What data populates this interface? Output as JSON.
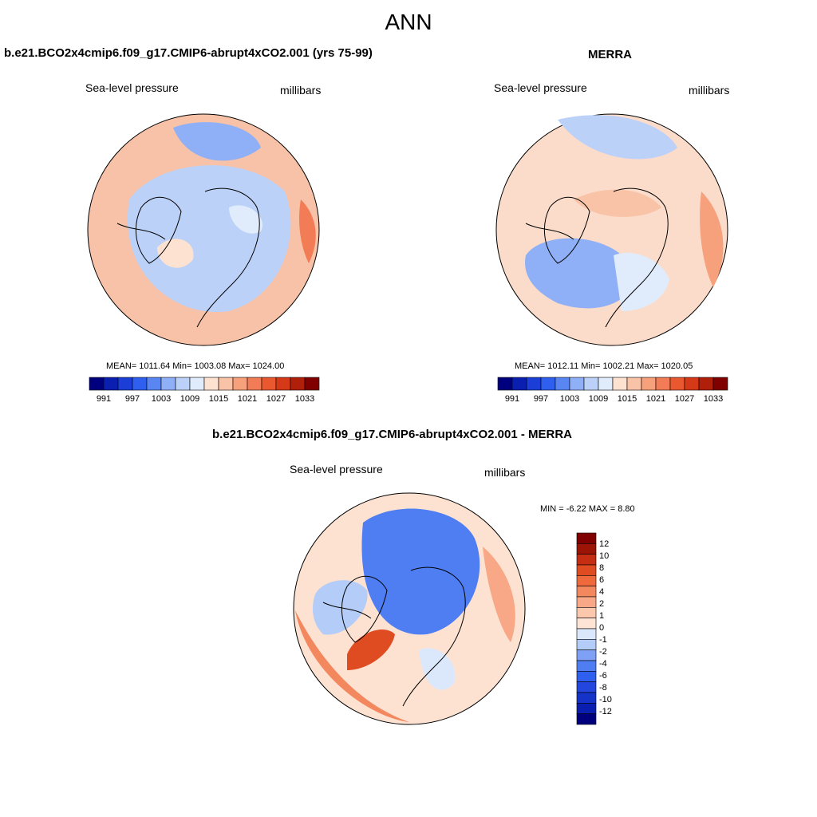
{
  "page": {
    "title": "ANN"
  },
  "panels": [
    {
      "id": "model",
      "case_title": "b.e21.BCO2x4cmip6.f09_g17.CMIP6-abrupt4xCO2.001 (yrs 75-99)",
      "variable": "Sea-level pressure",
      "units": "millibars",
      "stats": "MEAN= 1011.64  Min= 1003.08  Max= 1024.00",
      "fill": "#f7c2a8"
    },
    {
      "id": "obs",
      "case_title": "MERRA",
      "variable": "Sea-level pressure",
      "units": "millibars",
      "stats": "MEAN= 1012.11  Min= 1002.21  Max= 1020.05",
      "fill": "#fbdccb"
    }
  ],
  "diff_panel": {
    "case_title": "b.e21.BCO2x4cmip6.f09_g17.CMIP6-abrupt4xCO2.001 - MERRA",
    "variable": "Sea-level pressure",
    "units": "millibars",
    "minmax": "MIN =  -6.22 MAX =   8.80",
    "fill": "#fde2d2"
  },
  "colorbar_abs": {
    "colors": [
      "#00007f",
      "#0a1fb0",
      "#1b3fd6",
      "#2f5fef",
      "#5a86f4",
      "#8fb0f6",
      "#bcd1f8",
      "#e0ecfc",
      "#fde2d2",
      "#f9c3a8",
      "#f6a07c",
      "#f27c55",
      "#ea5830",
      "#d53918",
      "#b01f0a",
      "#800000"
    ],
    "labels": [
      "991",
      "997",
      "1003",
      "1009",
      "1015",
      "1021",
      "1027",
      "1033"
    ]
  },
  "colorbar_diff": {
    "colors": [
      "#00007f",
      "#0a1fb0",
      "#1533c9",
      "#2346de",
      "#2f5fef",
      "#4f7ef2",
      "#7ea0f5",
      "#b4ccf8",
      "#dbe8fc",
      "#fde4d4",
      "#fbc7ad",
      "#f8a886",
      "#f3885f",
      "#ee6a3d",
      "#e04c22",
      "#c52e12",
      "#9c1406",
      "#800000"
    ],
    "labels": [
      "12",
      "10",
      "8",
      "6",
      "4",
      "2",
      "1",
      "0",
      "-1",
      "-2",
      "-4",
      "-6",
      "-8",
      "-10",
      "-12"
    ]
  }
}
